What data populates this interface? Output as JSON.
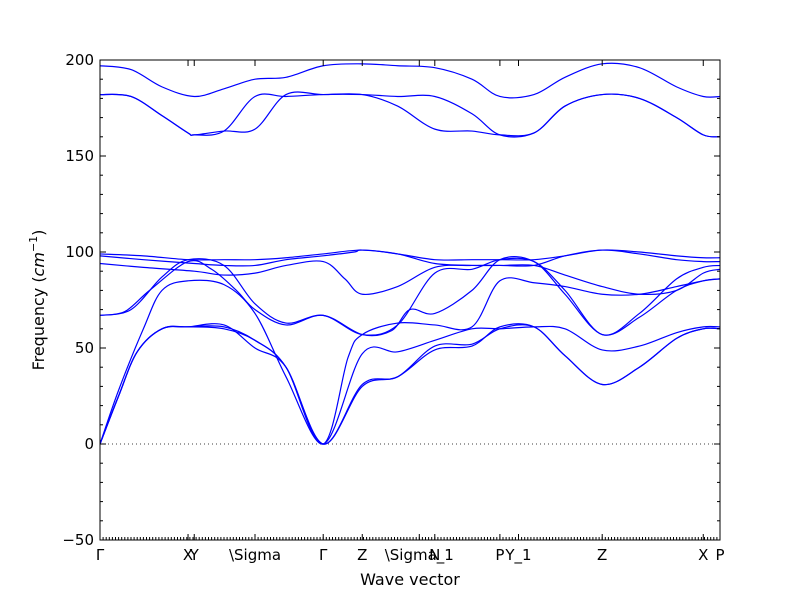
{
  "chart_data": {
    "type": "line",
    "xlabel": "Wave vector",
    "ylabel_prefix": "Frequency (",
    "ylabel_unit_base": "cm",
    "ylabel_unit_exp": "−1",
    "ylabel_suffix": ")",
    "ylim": [
      -50,
      200
    ],
    "xlim": [
      0,
      1
    ],
    "yticks": [
      -50,
      0,
      50,
      100,
      150,
      200
    ],
    "ytick_labels": [
      "−50",
      "0",
      "50",
      "100",
      "150",
      "200"
    ],
    "xticks": [
      {
        "label": "Γ",
        "x": 0.0
      },
      {
        "label": "X",
        "x": 0.142
      },
      {
        "label": "Y",
        "x": 0.152
      },
      {
        "label": "\\Sigma",
        "x": 0.25
      },
      {
        "label": "Γ",
        "x": 0.36
      },
      {
        "label": "Z",
        "x": 0.423
      },
      {
        "label": "\\Sigma_1",
        "x": 0.515
      },
      {
        "label": "N",
        "x": 0.54
      },
      {
        "label": "P",
        "x": 0.645
      },
      {
        "label": "Y_1",
        "x": 0.675
      },
      {
        "label": "Z",
        "x": 0.81
      },
      {
        "label": "X",
        "x": 0.973
      },
      {
        "label": "P",
        "x": 1.0
      }
    ],
    "zero_line": 0,
    "line_color": "#0000ff",
    "series": [
      {
        "x": [
          0,
          0.05,
          0.1,
          0.152,
          0.2,
          0.25,
          0.3,
          0.36,
          0.423,
          0.48,
          0.54,
          0.6,
          0.645,
          0.7,
          0.75,
          0.81,
          0.87,
          0.93,
          0.973,
          1.0
        ],
        "values": [
          197,
          195,
          186,
          181,
          185,
          190,
          191,
          197,
          198,
          197,
          196,
          190,
          181,
          182,
          191,
          198,
          196,
          186,
          181,
          181
        ]
      },
      {
        "x": [
          0,
          0.05,
          0.1,
          0.142,
          0.152,
          0.2,
          0.25,
          0.3,
          0.36,
          0.423,
          0.48,
          0.54,
          0.6,
          0.645,
          0.7,
          0.75,
          0.81,
          0.87,
          0.93,
          0.973,
          1.0
        ],
        "values": [
          182,
          181,
          171,
          162,
          161,
          163,
          181,
          181,
          182,
          182,
          181,
          181,
          172,
          161,
          162,
          176,
          182,
          180,
          170,
          161,
          160
        ]
      },
      {
        "x": [
          0,
          0.05,
          0.1,
          0.142,
          0.152,
          0.2,
          0.25,
          0.3,
          0.36,
          0.423,
          0.48,
          0.54,
          0.6,
          0.645,
          0.7,
          0.75,
          0.81,
          0.87,
          0.93,
          0.973,
          1.0
        ],
        "values": [
          182,
          181,
          171,
          162,
          161,
          163,
          164,
          182,
          182,
          182,
          176,
          164,
          163,
          161,
          162,
          176,
          182,
          180,
          170,
          161,
          160
        ]
      },
      {
        "x": [
          0,
          0.07,
          0.142,
          0.2,
          0.25,
          0.3,
          0.36,
          0.423,
          0.48,
          0.54,
          0.6,
          0.645,
          0.7,
          0.75,
          0.81,
          0.87,
          0.93,
          0.973,
          1.0
        ],
        "values": [
          99,
          98,
          96,
          96,
          96,
          97,
          99,
          101,
          99,
          96,
          96,
          96,
          96,
          98,
          101,
          100,
          98,
          97,
          97
        ]
      },
      {
        "x": [
          0,
          0.07,
          0.152,
          0.2,
          0.25,
          0.3,
          0.36,
          0.41,
          0.423,
          0.48,
          0.54,
          0.6,
          0.645,
          0.7,
          0.75,
          0.81,
          0.87,
          0.93,
          0.973,
          1.0
        ],
        "values": [
          98,
          96,
          94,
          93,
          93,
          96,
          98,
          100,
          101,
          99,
          94,
          93,
          93,
          93,
          98,
          101,
          99,
          96,
          95,
          95
        ]
      },
      {
        "x": [
          0,
          0.07,
          0.152,
          0.2,
          0.25,
          0.3,
          0.36,
          0.395,
          0.423,
          0.48,
          0.54,
          0.6,
          0.645,
          0.7,
          0.75,
          0.81,
          0.87,
          0.93,
          0.973,
          1.0
        ],
        "values": [
          94,
          92,
          90,
          88,
          89,
          93,
          95,
          86,
          78,
          82,
          92,
          93,
          93,
          93,
          88,
          82,
          78,
          80,
          89,
          91
        ]
      },
      {
        "x": [
          0,
          0.05,
          0.1,
          0.142,
          0.2,
          0.25,
          0.3,
          0.36,
          0.423,
          0.48,
          0.54,
          0.6,
          0.645,
          0.7,
          0.75,
          0.81,
          0.87,
          0.93,
          0.973,
          1.0
        ],
        "values": [
          67,
          70,
          87,
          96,
          93,
          73,
          63,
          67,
          57,
          62,
          89,
          91,
          96,
          95,
          80,
          57,
          68,
          86,
          92,
          93
        ]
      },
      {
        "x": [
          0,
          0.04,
          0.08,
          0.142,
          0.18,
          0.22,
          0.25,
          0.3,
          0.36,
          0.423,
          0.47,
          0.5,
          0.54,
          0.6,
          0.645,
          0.7,
          0.75,
          0.81,
          0.87,
          0.93,
          0.973,
          1.0
        ],
        "values": [
          67,
          69,
          80,
          95,
          91,
          80,
          70,
          62,
          67,
          57,
          59,
          70,
          68,
          80,
          96,
          95,
          78,
          57,
          66,
          80,
          85,
          86
        ]
      },
      {
        "x": [
          0,
          0.03,
          0.07,
          0.1,
          0.142,
          0.2,
          0.25,
          0.3,
          0.36,
          0.4,
          0.423,
          0.48,
          0.54,
          0.6,
          0.645,
          0.7,
          0.75,
          0.81,
          0.87,
          0.93,
          0.973,
          1.0
        ],
        "values": [
          0,
          28,
          60,
          80,
          85,
          83,
          68,
          35,
          0,
          45,
          57,
          63,
          62,
          61,
          85,
          84,
          82,
          78,
          78,
          82,
          85,
          86
        ]
      },
      {
        "x": [
          0,
          0.03,
          0.06,
          0.1,
          0.142,
          0.2,
          0.25,
          0.3,
          0.36,
          0.423,
          0.48,
          0.54,
          0.6,
          0.645,
          0.7,
          0.75,
          0.81,
          0.87,
          0.93,
          0.973,
          1.0
        ],
        "values": [
          0,
          25,
          48,
          60,
          61,
          60,
          54,
          40,
          0,
          31,
          35,
          51,
          52,
          60,
          61,
          46,
          31,
          40,
          55,
          60,
          60
        ]
      },
      {
        "x": [
          0,
          0.03,
          0.06,
          0.1,
          0.142,
          0.2,
          0.25,
          0.3,
          0.36,
          0.423,
          0.48,
          0.54,
          0.6,
          0.645,
          0.7,
          0.75,
          0.81,
          0.87,
          0.93,
          0.973,
          1.0
        ],
        "values": [
          0,
          25,
          48,
          60,
          61,
          61,
          54,
          40,
          0,
          47,
          48,
          54,
          60,
          60,
          61,
          60,
          49,
          51,
          58,
          61,
          61
        ]
      },
      {
        "x": [
          0,
          0.03,
          0.06,
          0.1,
          0.142,
          0.2,
          0.25,
          0.3,
          0.36,
          0.423,
          0.48,
          0.54,
          0.6,
          0.645,
          0.7,
          0.75,
          0.81,
          0.87,
          0.93,
          0.973,
          1.0
        ],
        "values": [
          0,
          25,
          48,
          60,
          61,
          62,
          50,
          40,
          0,
          30,
          35,
          49,
          51,
          61,
          61,
          46,
          31,
          40,
          55,
          60,
          60
        ]
      }
    ]
  }
}
